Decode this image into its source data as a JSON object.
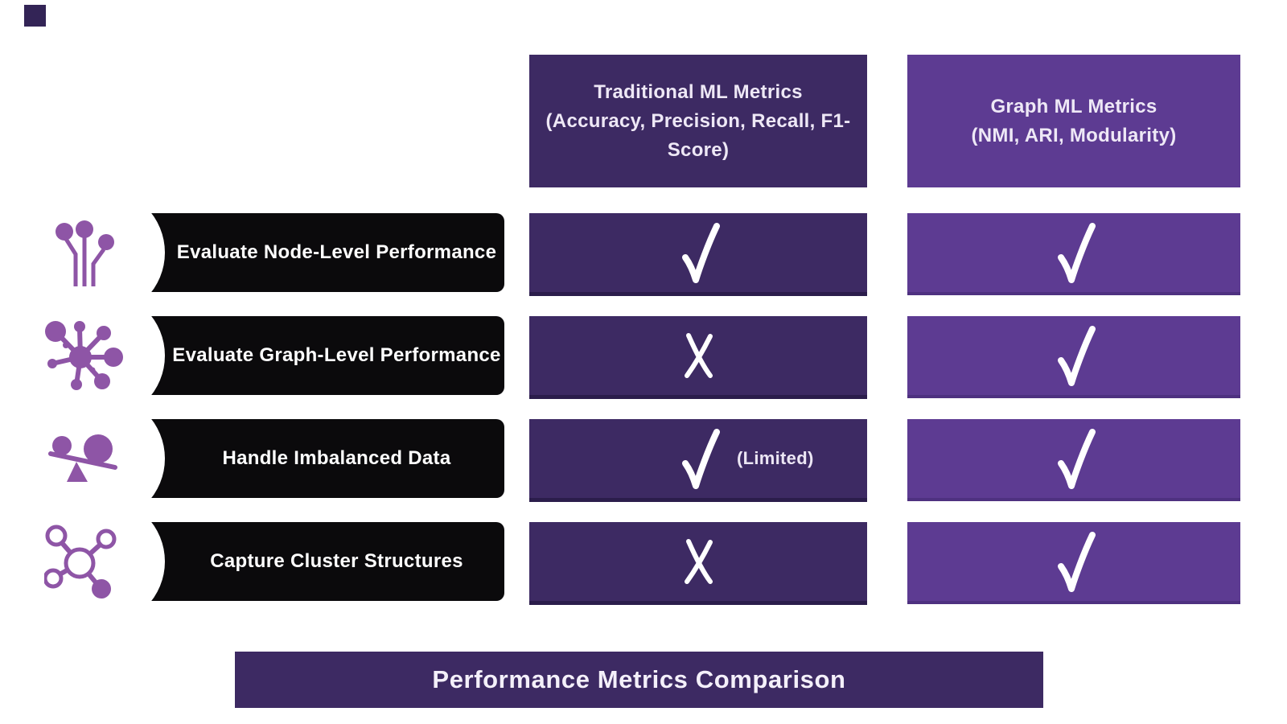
{
  "colors": {
    "traditional_column": "#3d2a63",
    "graph_column": "#5d3b92",
    "row_pill": "#0b0a0c",
    "icon_purple": "#8e55a6",
    "banner": "#3d2a63",
    "text_light": "#eee8f6",
    "background": "#ffffff"
  },
  "columns": [
    {
      "id": "traditional",
      "title": "Traditional ML Metrics",
      "subtitle": "(Accuracy, Precision, Recall, F1-Score)"
    },
    {
      "id": "graph",
      "title": "Graph ML Metrics",
      "subtitle": "(NMI, ARI, Modularity)"
    }
  ],
  "rows": [
    {
      "label": "Evaluate Node-Level Performance",
      "icon": "node-pins-icon",
      "traditional": {
        "mark": "check"
      },
      "graph": {
        "mark": "check"
      }
    },
    {
      "label": "Evaluate Graph-Level Performance",
      "icon": "network-hub-icon",
      "traditional": {
        "mark": "cross"
      },
      "graph": {
        "mark": "check"
      }
    },
    {
      "label": "Handle Imbalanced Data",
      "icon": "balance-scale-icon",
      "traditional": {
        "mark": "check",
        "note": "(Limited)"
      },
      "graph": {
        "mark": "check"
      }
    },
    {
      "label": "Capture Cluster Structures",
      "icon": "molecule-cluster-icon",
      "traditional": {
        "mark": "cross"
      },
      "graph": {
        "mark": "check"
      }
    }
  ],
  "footer": {
    "title": "Performance Metrics Comparison"
  }
}
